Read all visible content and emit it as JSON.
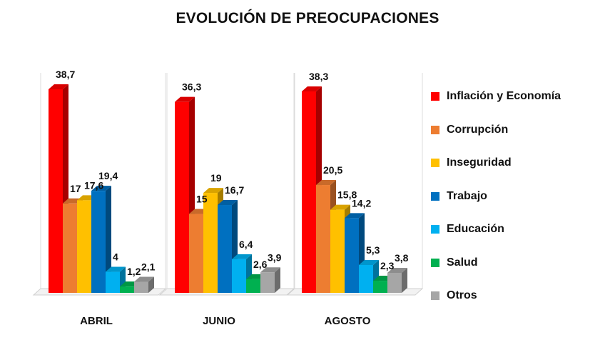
{
  "title": "EVOLUCIÓN DE PREOCUPACIONES",
  "legend": [
    {
      "label": "Inflación y Economía",
      "color": "#ff0000"
    },
    {
      "label": "Corrupción",
      "color": "#ed7d31"
    },
    {
      "label": "Inseguridad",
      "color": "#ffc000"
    },
    {
      "label": "Trabajo",
      "color": "#0070c0"
    },
    {
      "label": "Educación",
      "color": "#00b0f0"
    },
    {
      "label": "Salud",
      "color": "#00b050"
    },
    {
      "label": "Otros",
      "color": "#a6a6a6"
    }
  ],
  "chart_data": {
    "type": "bar",
    "title": "EVOLUCIÓN DE PREOCUPACIONES",
    "categories": [
      "ABRIL",
      "JUNIO",
      "AGOSTO"
    ],
    "series": [
      {
        "name": "Inflación y Economía",
        "values": [
          38.7,
          36.3,
          38.3
        ],
        "labels": [
          "38,7",
          "36,3",
          "38,3"
        ],
        "color": "#ff0000"
      },
      {
        "name": "Corrupción",
        "values": [
          17,
          15,
          20.5
        ],
        "labels": [
          "17",
          "15",
          "20,5"
        ],
        "color": "#ed7d31"
      },
      {
        "name": "Inseguridad",
        "values": [
          17.6,
          19,
          15.8
        ],
        "labels": [
          "17,6",
          "19",
          "15,8"
        ],
        "color": "#ffc000"
      },
      {
        "name": "Trabajo",
        "values": [
          19.4,
          16.7,
          14.2
        ],
        "labels": [
          "19,4",
          "16,7",
          "14,2"
        ],
        "color": "#0070c0"
      },
      {
        "name": "Educación",
        "values": [
          4,
          6.4,
          5.3
        ],
        "labels": [
          "4",
          "6,4",
          "5,3"
        ],
        "color": "#00b0f0"
      },
      {
        "name": "Salud",
        "values": [
          1.2,
          2.6,
          2.3
        ],
        "labels": [
          "1,2",
          "2,6",
          "2,3"
        ],
        "color": "#00b050"
      },
      {
        "name": "Otros",
        "values": [
          2.1,
          3.9,
          3.8
        ],
        "labels": [
          "2,1",
          "3,9",
          "3,8"
        ],
        "color": "#a6a6a6"
      }
    ],
    "xlabel": "",
    "ylabel": "",
    "ylim": [
      0,
      38.7
    ],
    "grid": false,
    "legend_position": "right",
    "style": "3d-clustered-bar"
  }
}
